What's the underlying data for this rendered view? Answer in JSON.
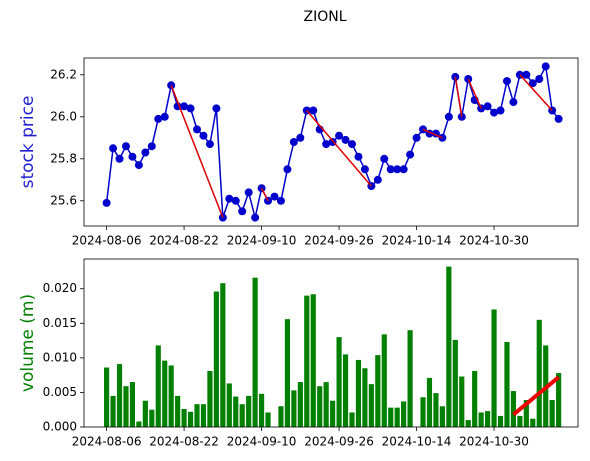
{
  "chart_data": [
    {
      "type": "line",
      "title": "ZIONL",
      "ylabel": "stock price",
      "ylabel_color": "#1f1fd0",
      "categories": [
        "2024-08-06",
        null,
        null,
        null,
        null,
        null,
        null,
        null,
        null,
        null,
        null,
        null,
        "2024-08-22",
        null,
        null,
        null,
        null,
        null,
        null,
        null,
        null,
        null,
        null,
        null,
        "2024-09-10",
        null,
        null,
        null,
        null,
        null,
        null,
        null,
        null,
        null,
        null,
        null,
        "2024-09-26",
        null,
        null,
        null,
        null,
        null,
        null,
        null,
        null,
        null,
        null,
        null,
        "2024-10-14",
        null,
        null,
        null,
        null,
        null,
        null,
        null,
        null,
        null,
        null,
        null,
        "2024-10-30",
        null,
        null,
        null,
        null,
        null,
        null,
        null,
        null,
        null,
        null
      ],
      "xlim": [
        -3.5,
        73
      ],
      "series": [
        {
          "color": "#0000cc",
          "values": [
            25.59,
            25.85,
            25.8,
            25.86,
            25.81,
            25.77,
            25.83,
            25.86,
            25.99,
            26.0,
            26.15,
            26.05,
            26.05,
            26.04,
            25.94,
            25.91,
            25.87,
            26.04,
            25.52,
            25.61,
            25.6,
            25.55,
            25.64,
            25.52,
            25.66,
            25.6,
            25.62,
            25.6,
            25.75,
            25.88,
            25.9,
            26.03,
            26.03,
            25.94,
            25.87,
            25.88,
            25.91,
            25.89,
            25.87,
            25.81,
            25.75,
            25.67,
            25.7,
            25.8,
            25.75,
            25.75,
            25.75,
            25.82,
            25.9,
            25.94,
            25.92,
            25.92,
            25.9,
            26.0,
            26.19,
            26.0,
            26.18,
            26.08,
            26.04,
            26.05,
            26.02,
            26.03,
            26.17,
            26.07,
            26.2,
            26.2,
            26.16,
            26.18,
            26.24,
            26.03,
            25.99
          ]
        }
      ],
      "trend_lines": {
        "color": "#dd0000",
        "segments": [
          {
            "x": [
              10,
              18
            ],
            "values": [
              26.15,
              25.52
            ]
          },
          {
            "x": [
              24,
              25
            ],
            "values": [
              25.66,
              25.6
            ]
          },
          {
            "x": [
              31,
              41
            ],
            "values": [
              26.03,
              25.67
            ]
          },
          {
            "x": [
              49,
              52
            ],
            "values": [
              25.94,
              25.9
            ]
          },
          {
            "x": [
              54,
              55
            ],
            "values": [
              26.19,
              26.0
            ]
          },
          {
            "x": [
              56,
              58
            ],
            "values": [
              26.18,
              26.04
            ]
          },
          {
            "x": [
              64,
              69
            ],
            "values": [
              26.2,
              26.03
            ]
          }
        ]
      },
      "ylim": [
        25.48,
        26.28
      ],
      "yticks": [
        25.6,
        25.8,
        {
          "value": 26,
          "label": "26.0"
        },
        26.2
      ]
    },
    {
      "type": "bar",
      "ylabel": "volume (m)",
      "ylabel_color": "#008000",
      "color": "#008000",
      "xlim": [
        -3.5,
        73
      ],
      "values": [
        0.0086,
        0.0045,
        0.0091,
        0.0059,
        0.0065,
        0.0008,
        0.0038,
        0.0025,
        0.0118,
        0.0096,
        0.0089,
        0.0045,
        0.0026,
        0.0022,
        0.0033,
        0.0033,
        0.0081,
        0.0196,
        0.0208,
        0.0063,
        0.0044,
        0.0033,
        0.0045,
        0.0216,
        0.0048,
        0.0021,
        0,
        0.003,
        0.0156,
        0.0053,
        0.0065,
        0.019,
        0.0192,
        0.0059,
        0.0065,
        0.0038,
        0.013,
        0.0105,
        0.0021,
        0.0097,
        0.0085,
        0.0062,
        0.0104,
        0.0134,
        0.0028,
        0.0028,
        0.0037,
        0.014,
        0,
        0.0043,
        0.0071,
        0.0049,
        0.003,
        0.0232,
        0.0126,
        0.0073,
        0.001,
        0.0081,
        0.0021,
        0.0023,
        0.017,
        0.0016,
        0.0123,
        0.0052,
        0.0016,
        0.0039,
        0.0012,
        0.0155,
        0.0118,
        0.0039,
        0.0078
      ],
      "trend_lines": {
        "color": "#ee0000",
        "segments": [
          {
            "x": [
              63,
              70
            ],
            "values": [
              0.0018,
              0.0072
            ]
          }
        ]
      },
      "ylim": [
        0,
        0.0243
      ],
      "yticks": [
        {
          "value": 0,
          "label": "0.000"
        },
        {
          "value": 0.005,
          "label": "0.005"
        },
        {
          "value": 0.01,
          "label": "0.010"
        },
        {
          "value": 0.015,
          "label": "0.015"
        },
        {
          "value": 0.02,
          "label": "0.020"
        }
      ]
    }
  ]
}
